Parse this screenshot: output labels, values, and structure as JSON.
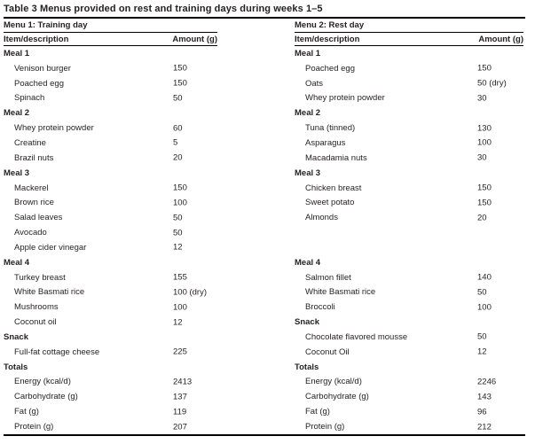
{
  "table": {
    "title": "Table 3 Menus provided on rest and training days during weeks 1–5",
    "text_color": "#231f20",
    "rule_color": "#000000",
    "menus": [
      {
        "title": "Menu 1: Training day",
        "item_header": "Item/description",
        "amount_header": "Amount (g)"
      },
      {
        "title": "Menu 2: Rest day",
        "item_header": "Item/description",
        "amount_header": "Amount (g)"
      }
    ],
    "rows": [
      {
        "left": {
          "type": "section",
          "label": "Meal 1",
          "amount": ""
        },
        "right": {
          "type": "section",
          "label": "Meal 1",
          "amount": ""
        }
      },
      {
        "left": {
          "type": "item",
          "label": "Venison burger",
          "amount": "150"
        },
        "right": {
          "type": "item",
          "label": "Poached egg",
          "amount": "150"
        }
      },
      {
        "left": {
          "type": "item",
          "label": "Poached egg",
          "amount": "150"
        },
        "right": {
          "type": "item",
          "label": "Oats",
          "amount": "50 (dry)"
        }
      },
      {
        "left": {
          "type": "item",
          "label": "Spinach",
          "amount": "50"
        },
        "right": {
          "type": "item",
          "label": "Whey protein powder",
          "amount": "30"
        }
      },
      {
        "left": {
          "type": "section",
          "label": "Meal 2",
          "amount": ""
        },
        "right": {
          "type": "section",
          "label": "Meal 2",
          "amount": ""
        }
      },
      {
        "left": {
          "type": "item",
          "label": "Whey protein powder",
          "amount": "60"
        },
        "right": {
          "type": "item",
          "label": "Tuna (tinned)",
          "amount": "130"
        }
      },
      {
        "left": {
          "type": "item",
          "label": "Creatine",
          "amount": "5"
        },
        "right": {
          "type": "item",
          "label": "Asparagus",
          "amount": "100"
        }
      },
      {
        "left": {
          "type": "item",
          "label": "Brazil nuts",
          "amount": "20"
        },
        "right": {
          "type": "item",
          "label": "Macadamia nuts",
          "amount": "30"
        }
      },
      {
        "left": {
          "type": "section",
          "label": "Meal 3",
          "amount": ""
        },
        "right": {
          "type": "section",
          "label": "Meal 3",
          "amount": ""
        }
      },
      {
        "left": {
          "type": "item",
          "label": "Mackerel",
          "amount": "150"
        },
        "right": {
          "type": "item",
          "label": "Chicken breast",
          "amount": "150"
        }
      },
      {
        "left": {
          "type": "item",
          "label": "Brown rice",
          "amount": "100"
        },
        "right": {
          "type": "item",
          "label": "Sweet potato",
          "amount": "150"
        }
      },
      {
        "left": {
          "type": "item",
          "label": "Salad leaves",
          "amount": "50"
        },
        "right": {
          "type": "item",
          "label": "Almonds",
          "amount": "20"
        }
      },
      {
        "left": {
          "type": "item",
          "label": "Avocado",
          "amount": "50"
        },
        "right": {
          "type": "blank",
          "label": "",
          "amount": ""
        }
      },
      {
        "left": {
          "type": "item",
          "label": "Apple cider vinegar",
          "amount": "12"
        },
        "right": {
          "type": "blank",
          "label": "",
          "amount": ""
        }
      },
      {
        "left": {
          "type": "section",
          "label": "Meal 4",
          "amount": ""
        },
        "right": {
          "type": "section",
          "label": "Meal 4",
          "amount": ""
        }
      },
      {
        "left": {
          "type": "item",
          "label": "Turkey breast",
          "amount": "155"
        },
        "right": {
          "type": "item",
          "label": "Salmon fillet",
          "amount": "140"
        }
      },
      {
        "left": {
          "type": "item",
          "label": "White Basmati rice",
          "amount": "100 (dry)"
        },
        "right": {
          "type": "item",
          "label": "White Basmati rice",
          "amount": "50"
        }
      },
      {
        "left": {
          "type": "item",
          "label": "Mushrooms",
          "amount": "100"
        },
        "right": {
          "type": "item",
          "label": "Broccoli",
          "amount": "100"
        }
      },
      {
        "left": {
          "type": "item",
          "label": "Coconut oil",
          "amount": "12"
        },
        "right": {
          "type": "section",
          "label": "Snack",
          "amount": ""
        }
      },
      {
        "left": {
          "type": "section",
          "label": "Snack",
          "amount": ""
        },
        "right": {
          "type": "item",
          "label": "Chocolate flavored mousse",
          "amount": "50"
        }
      },
      {
        "left": {
          "type": "item",
          "label": "Full-fat cottage cheese",
          "amount": "225"
        },
        "right": {
          "type": "item",
          "label": "Coconut Oil",
          "amount": "12"
        }
      },
      {
        "left": {
          "type": "section",
          "label": "Totals",
          "amount": ""
        },
        "right": {
          "type": "section",
          "label": "Totals",
          "amount": ""
        }
      },
      {
        "left": {
          "type": "item",
          "label": "Energy (kcal/d)",
          "amount": "2413"
        },
        "right": {
          "type": "item",
          "label": "Energy (kcal/d)",
          "amount": "2246"
        }
      },
      {
        "left": {
          "type": "item",
          "label": "Carbohydrate (g)",
          "amount": "137"
        },
        "right": {
          "type": "item",
          "label": "Carbohydrate (g)",
          "amount": "143"
        }
      },
      {
        "left": {
          "type": "item",
          "label": "Fat (g)",
          "amount": "119"
        },
        "right": {
          "type": "item",
          "label": "Fat (g)",
          "amount": "96"
        }
      },
      {
        "left": {
          "type": "item",
          "label": "Protein (g)",
          "amount": "207"
        },
        "right": {
          "type": "item",
          "label": "Protein (g)",
          "amount": "212"
        }
      }
    ]
  }
}
